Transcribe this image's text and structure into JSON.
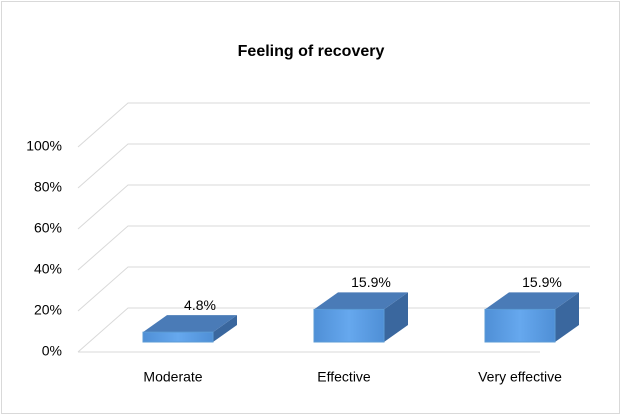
{
  "chart_data": {
    "type": "bar3d",
    "title": "Feeling of recovery",
    "categories": [
      "Moderate",
      "Effective",
      "Very effective"
    ],
    "values": [
      4.8,
      15.9,
      15.9
    ],
    "value_labels": [
      "4.8%",
      "15.9%",
      "15.9%"
    ],
    "color": "#5b9bd5",
    "ylim": [
      0,
      100
    ],
    "yticks": [
      {
        "value": 0,
        "label": "0%"
      },
      {
        "value": 20,
        "label": "20%"
      },
      {
        "value": 40,
        "label": "40%"
      },
      {
        "value": 60,
        "label": "60%"
      },
      {
        "value": 80,
        "label": "80%"
      },
      {
        "value": 100,
        "label": "100%"
      }
    ],
    "grid": true
  }
}
